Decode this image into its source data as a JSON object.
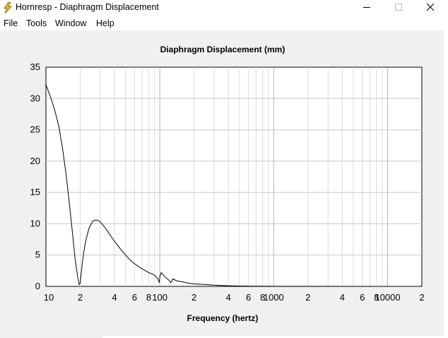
{
  "window": {
    "title": "Hornresp - Diaphragm Displacement",
    "icon": "lightning-bolt-icon",
    "controls": [
      "minimize-icon",
      "maximize-icon",
      "close-icon"
    ]
  },
  "menu": {
    "file": "File",
    "tools": "Tools",
    "window": "Window",
    "help": "Help"
  },
  "chart_data": {
    "type": "line",
    "title": "Diaphragm Displacement (mm)",
    "xlabel": "Frequency (hertz)",
    "ylabel": "",
    "xscale": "log",
    "xlim": [
      10,
      20000
    ],
    "ylim": [
      0,
      35
    ],
    "grid": true,
    "legend": "none",
    "line_color": "#000000",
    "y_ticks": [
      "0",
      "5",
      "10",
      "15",
      "20",
      "25",
      "30",
      "35"
    ],
    "x_ticks": [
      {
        "value": 10,
        "label": "10"
      },
      {
        "value": 20,
        "label": "2"
      },
      {
        "value": 40,
        "label": "4"
      },
      {
        "value": 60,
        "label": "6"
      },
      {
        "value": 80,
        "label": "8"
      },
      {
        "value": 100,
        "label": "100"
      },
      {
        "value": 200,
        "label": "2"
      },
      {
        "value": 400,
        "label": "4"
      },
      {
        "value": 600,
        "label": "6"
      },
      {
        "value": 800,
        "label": "8"
      },
      {
        "value": 1000,
        "label": "1000"
      },
      {
        "value": 2000,
        "label": "2"
      },
      {
        "value": 4000,
        "label": "4"
      },
      {
        "value": 6000,
        "label": "6"
      },
      {
        "value": 8000,
        "label": "8"
      },
      {
        "value": 10000,
        "label": "10000"
      },
      {
        "value": 20000,
        "label": "2"
      }
    ],
    "series": [
      {
        "x": [
          10,
          11,
          12,
          13,
          14,
          15,
          16,
          17,
          18,
          19,
          19.6,
          20,
          20.3,
          20.8,
          21.5,
          22.5,
          24,
          26,
          28,
          29.5,
          31,
          33,
          36,
          40,
          45,
          50,
          55,
          60,
          70,
          80,
          90,
          96,
          99,
          100,
          103,
          110,
          120,
          125,
          128,
          130,
          140,
          160,
          180,
          200,
          250,
          300,
          400,
          500,
          700,
          1000,
          2000,
          5000,
          10000,
          15000
        ],
        "y": [
          32.2,
          30.2,
          28.0,
          25.5,
          22.0,
          18.0,
          13.5,
          9.0,
          4.5,
          1.5,
          0.3,
          0.5,
          1.8,
          3.5,
          5.5,
          7.5,
          9.4,
          10.5,
          10.6,
          10.4,
          10.0,
          9.4,
          8.4,
          7.2,
          6.0,
          5.0,
          4.2,
          3.6,
          2.8,
          2.2,
          1.8,
          1.2,
          0.6,
          1.6,
          2.2,
          1.6,
          1.0,
          0.6,
          0.9,
          1.2,
          0.9,
          0.7,
          0.5,
          0.4,
          0.3,
          0.2,
          0.1,
          0.06,
          0.03,
          0.02,
          0.01,
          0.005,
          0.003,
          0.002
        ]
      }
    ]
  }
}
